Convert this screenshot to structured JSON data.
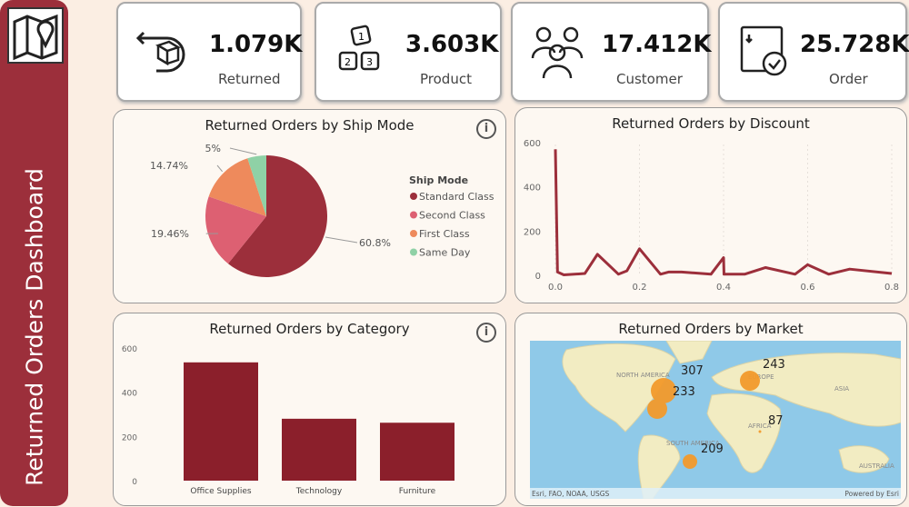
{
  "sidebar": {
    "title": "Returned Orders Dashboard",
    "logo_icon": "map-pin-icon"
  },
  "kpis": [
    {
      "value": "1.079K",
      "label": "Returned",
      "icon": "return-box-icon"
    },
    {
      "value": "3.603K",
      "label": "Product",
      "icon": "blocks-icon"
    },
    {
      "value": "17.412K",
      "label": "Customer",
      "icon": "people-icon"
    },
    {
      "value": "25.728K",
      "label": "Order",
      "icon": "box-check-icon"
    }
  ],
  "ship_mode": {
    "title": "Returned Orders by Ship Mode",
    "legend_title": "Ship Mode",
    "info": "i"
  },
  "discount": {
    "title": "Returned Orders by Discount"
  },
  "category": {
    "title": "Returned Orders by Category",
    "info": "i"
  },
  "market": {
    "title": "Returned Orders by Market",
    "attribution": "Esri, FAO, NOAA, USGS",
    "powered": "Powered by Esri",
    "labels": [
      "NORTH AMERICA",
      "EUROPE",
      "ASIA",
      "AFRICA",
      "SOUTH AMERICA",
      "AUSTRALIA"
    ],
    "bubbles": [
      {
        "value": "307"
      },
      {
        "value": "233"
      },
      {
        "value": "243"
      },
      {
        "value": "87"
      },
      {
        "value": "209"
      }
    ]
  },
  "chart_data": [
    {
      "type": "pie",
      "title": "Returned Orders by Ship Mode",
      "legend_title": "Ship Mode",
      "legend": "right",
      "categories": [
        "Standard Class",
        "Second Class",
        "First Class",
        "Same Day"
      ],
      "values": [
        60.8,
        19.46,
        14.74,
        5
      ],
      "labels": [
        "60.8%",
        "19.46%",
        "14.74%",
        "5%"
      ],
      "colors": [
        "#9c2f3b",
        "#dd6072",
        "#ee8a5c",
        "#8fd1a6"
      ]
    },
    {
      "type": "line",
      "title": "Returned Orders by Discount",
      "xlim": [
        0,
        0.8
      ],
      "ylim": [
        0,
        600
      ],
      "xticks": [
        "0.0",
        "0.2",
        "0.4",
        "0.6",
        "0.8"
      ],
      "yticks": [
        "0",
        "200",
        "400",
        "600"
      ],
      "color": "#9c2f3b",
      "x": [
        0,
        0.005,
        0.02,
        0.07,
        0.1,
        0.15,
        0.17,
        0.2,
        0.25,
        0.27,
        0.3,
        0.37,
        0.4,
        0.401,
        0.45,
        0.5,
        0.57,
        0.6,
        0.65,
        0.7,
        0.8
      ],
      "y": [
        570,
        15,
        2,
        8,
        95,
        5,
        20,
        120,
        5,
        15,
        15,
        5,
        80,
        5,
        5,
        35,
        5,
        48,
        5,
        28,
        8
      ]
    },
    {
      "type": "bar",
      "title": "Returned Orders by Category",
      "categories": [
        "Office Supplies",
        "Technology",
        "Furniture"
      ],
      "values": [
        535,
        280,
        262
      ],
      "ylim": [
        0,
        600
      ],
      "yticks": [
        "0",
        "200",
        "400",
        "600"
      ],
      "color": "#8b1f2b"
    }
  ]
}
